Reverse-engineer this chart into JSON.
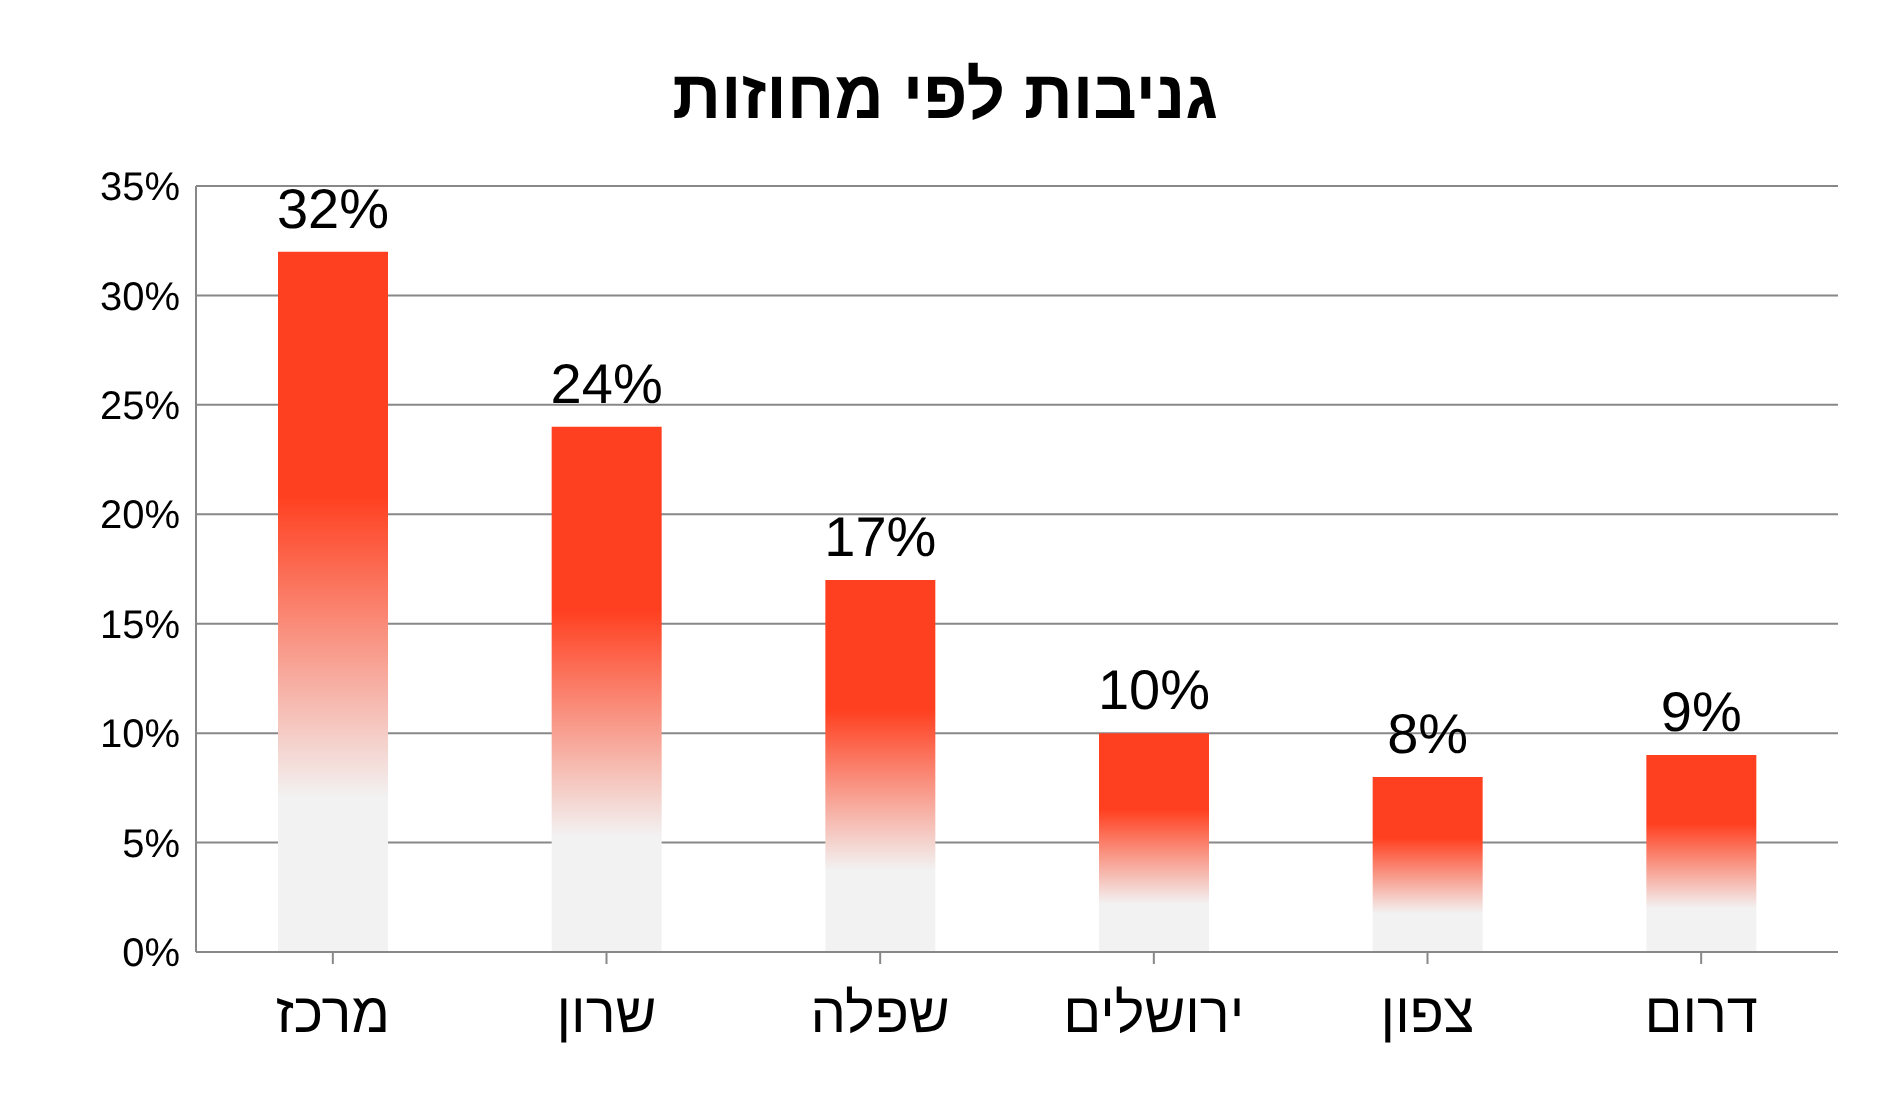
{
  "chart_data": {
    "type": "bar",
    "title": "גניבות לפי מחוזות",
    "categories": [
      "מרכז",
      "שרון",
      "שפלה",
      "ירושלים",
      "צפון",
      "דרום"
    ],
    "values": [
      32,
      24,
      17,
      10,
      8,
      9
    ],
    "value_labels": [
      "32%",
      "24%",
      "17%",
      "10%",
      "8%",
      "9%"
    ],
    "color": "#ff4020",
    "ylim": [
      0,
      35
    ],
    "yticks": [
      {
        "value": 0,
        "label": "0%"
      },
      {
        "value": 5,
        "label": "5%"
      },
      {
        "value": 10,
        "label": "10%"
      },
      {
        "value": 15,
        "label": "15%"
      },
      {
        "value": 20,
        "label": "20%"
      },
      {
        "value": 25,
        "label": "25%"
      },
      {
        "value": 30,
        "label": "30%"
      },
      {
        "value": 35,
        "label": "35%"
      }
    ],
    "grid": "y",
    "legend": false
  }
}
